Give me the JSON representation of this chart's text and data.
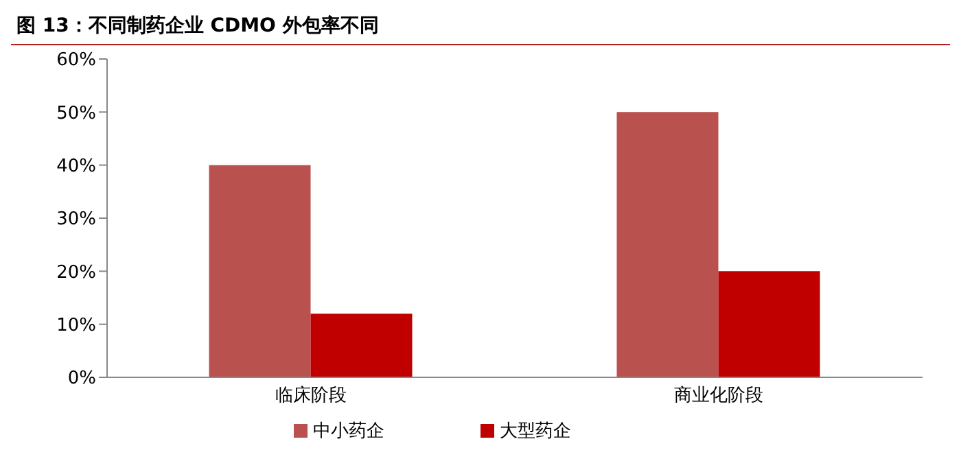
{
  "chart_data": {
    "type": "bar",
    "title": "图 13：不同制药企业 CDMO 外包率不同",
    "categories": [
      "临床阶段",
      "商业化阶段"
    ],
    "series": [
      {
        "name": "中小药企",
        "color": "#b9514e",
        "values": [
          40,
          50
        ]
      },
      {
        "name": "大型药企",
        "color": "#c00000",
        "values": [
          12,
          20
        ]
      }
    ],
    "ylim": [
      0,
      60
    ],
    "yticks": [
      {
        "value": 0,
        "label": "0%"
      },
      {
        "value": 10,
        "label": "10%"
      },
      {
        "value": 20,
        "label": "20%"
      },
      {
        "value": 30,
        "label": "30%"
      },
      {
        "value": 40,
        "label": "40%"
      },
      {
        "value": 50,
        "label": "50%"
      },
      {
        "value": 60,
        "label": "60%"
      }
    ],
    "legend": "bottom"
  }
}
